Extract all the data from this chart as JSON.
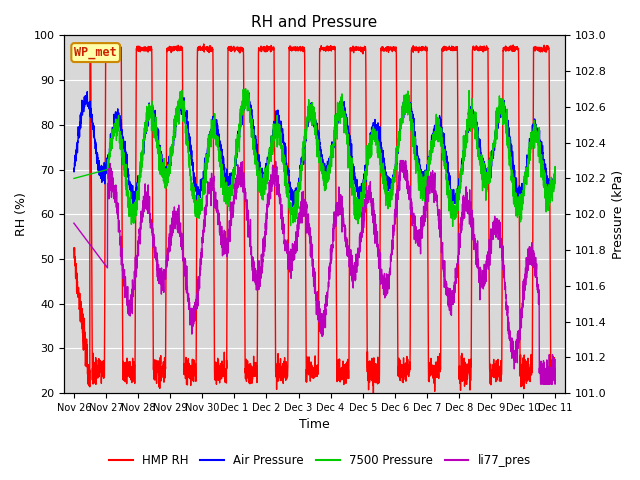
{
  "title": "RH and Pressure",
  "xlabel": "Time",
  "ylabel_left": "RH (%)",
  "ylabel_right": "Pressure (kPa)",
  "ylim_left": [
    20,
    100
  ],
  "ylim_right": [
    101.0,
    103.0
  ],
  "plot_bg_color": "#d8d8d8",
  "annotation_label": "WP_met",
  "legend_entries": [
    "HMP RH",
    "Air Pressure",
    "7500 Pressure",
    "li77_pres"
  ],
  "colors": [
    "#ff0000",
    "#0000ff",
    "#00cc00",
    "#bb00bb"
  ],
  "xtick_labels": [
    "Nov 26",
    "Nov 27",
    "Nov 28",
    "Nov 29",
    "Nov 30",
    "Dec 1",
    "Dec 2",
    "Dec 3",
    "Dec 4",
    "Dec 5",
    "Dec 6",
    "Dec 7",
    "Dec 8",
    "Dec 9",
    "Dec 10",
    "Dec 11"
  ],
  "yticks_left": [
    20,
    30,
    40,
    50,
    60,
    70,
    80,
    90,
    100
  ],
  "yticks_right": [
    101.0,
    101.2,
    101.4,
    101.6,
    101.8,
    102.0,
    102.2,
    102.4,
    102.6,
    102.8,
    103.0
  ]
}
